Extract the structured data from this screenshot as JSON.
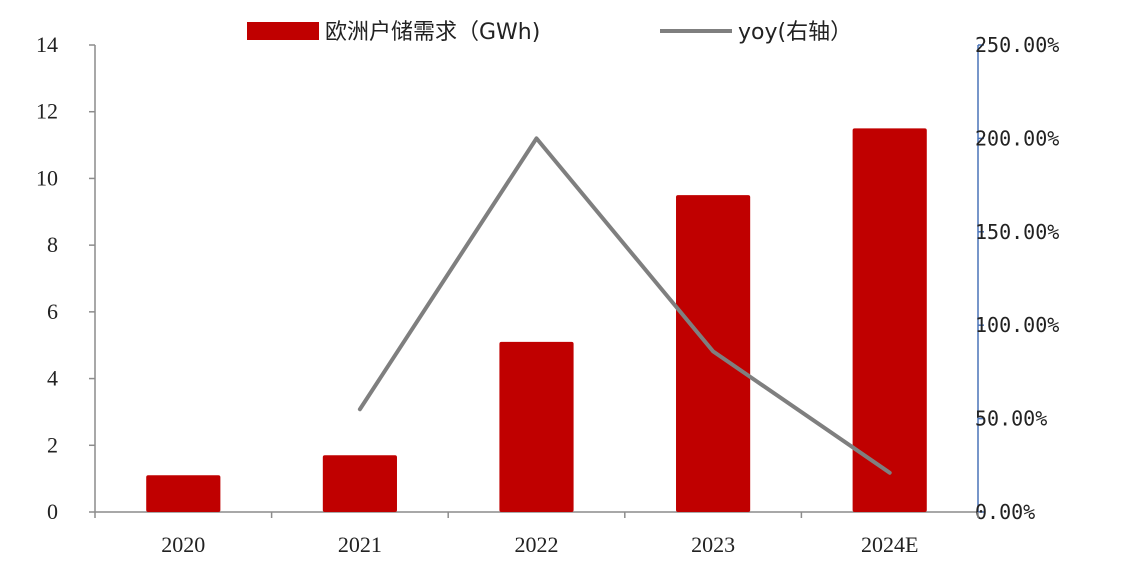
{
  "chart_data": {
    "type": "bar",
    "categories": [
      "2020",
      "2021",
      "2022",
      "2023",
      "2024E"
    ],
    "series": [
      {
        "name": "欧洲户储需求（GWh)",
        "type": "bar",
        "axis": "left",
        "color": "#C00000",
        "values": [
          1.1,
          1.7,
          5.1,
          9.5,
          11.5
        ]
      },
      {
        "name": "yoy(右轴）",
        "type": "line",
        "axis": "right",
        "color": "#7F7F7F",
        "values": [
          null,
          55.0,
          200.0,
          86.0,
          21.0
        ]
      }
    ],
    "y_left": {
      "ylim": [
        0,
        14
      ],
      "ticks": [
        "0",
        "2",
        "4",
        "6",
        "8",
        "10",
        "12",
        "14"
      ]
    },
    "y_right": {
      "ylim": [
        0,
        250
      ],
      "ticks": [
        "0.00%",
        "50.00%",
        "100.00%",
        "150.00%",
        "200.00%",
        "250.00%"
      ]
    },
    "title": "",
    "xlabel": "",
    "ylabel": "",
    "legend": "top"
  }
}
